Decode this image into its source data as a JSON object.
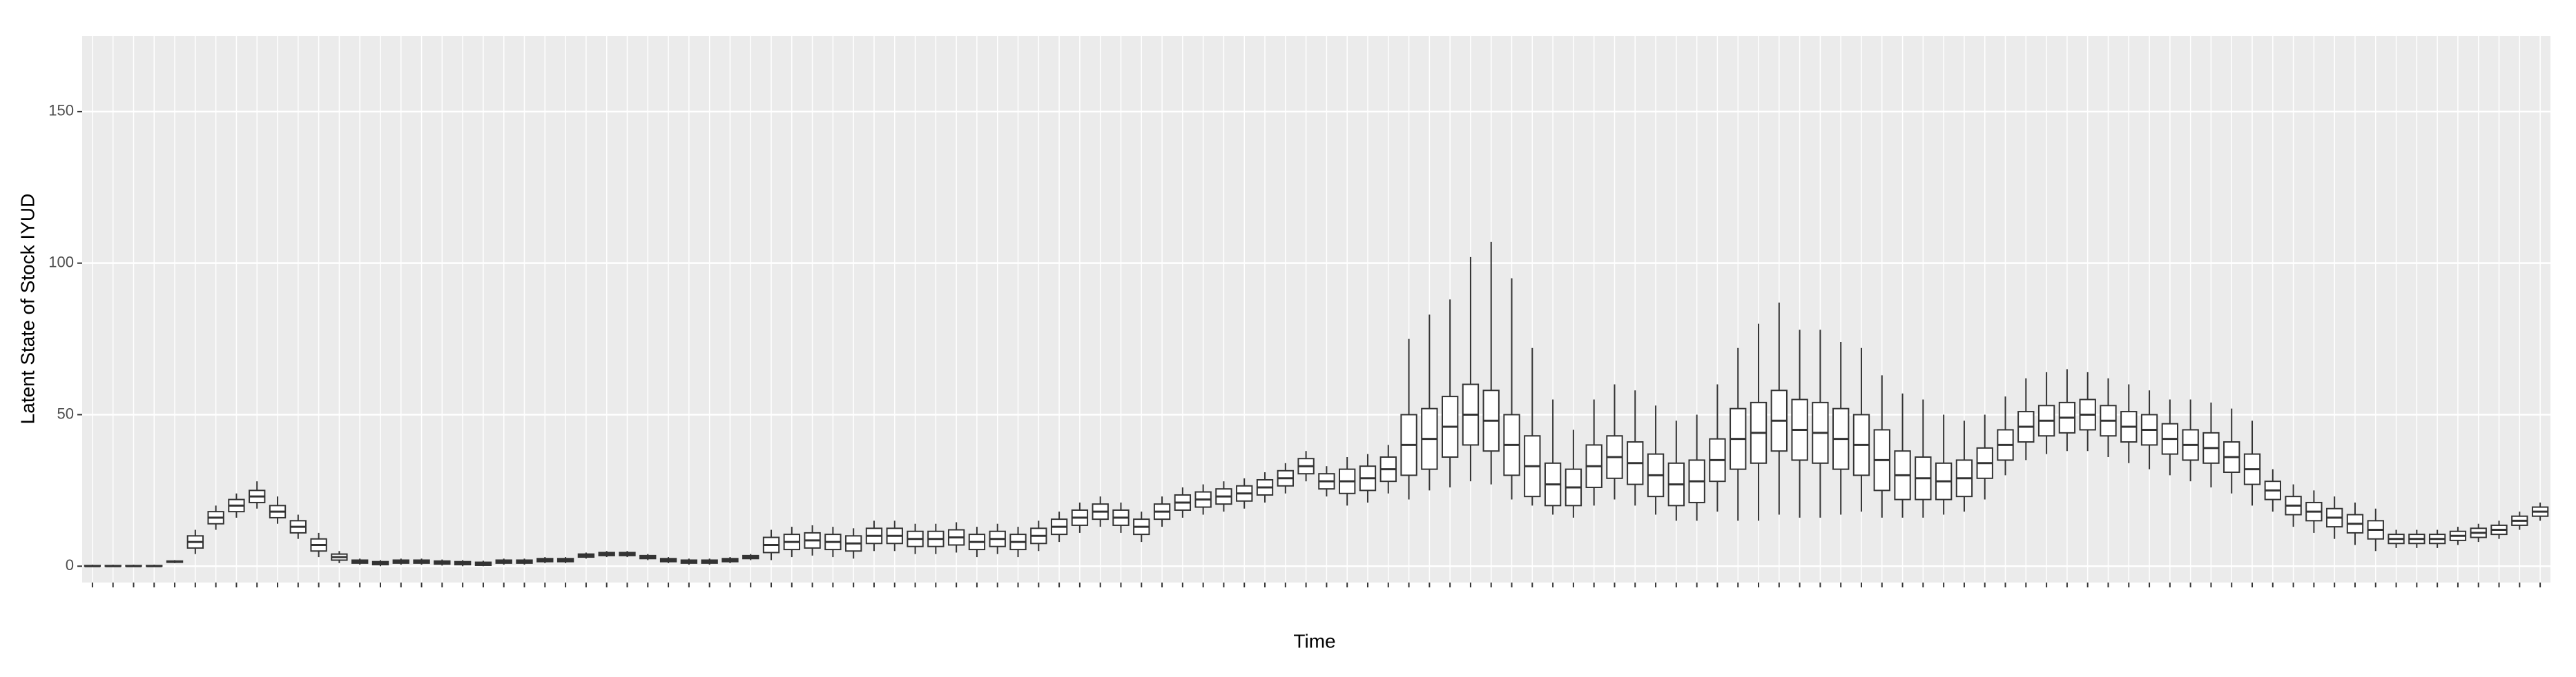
{
  "chart_data": {
    "type": "boxplot",
    "x_label": "Time",
    "y_label": "Latent State of Stock IYUD",
    "color": "#333333",
    "grid": true,
    "ylim": [
      -5.4,
      175
    ],
    "yticks": [
      0,
      50,
      100,
      150
    ],
    "categories": [
      null,
      null,
      null,
      null,
      null,
      null,
      null,
      null,
      null,
      null,
      null,
      null,
      null,
      null,
      null,
      null,
      null,
      null,
      null,
      null,
      null,
      null,
      null,
      null,
      null,
      null,
      null,
      null,
      null,
      null,
      null,
      null,
      null,
      null,
      null,
      null,
      null,
      null,
      null,
      null,
      null,
      null,
      null,
      null,
      null,
      null,
      null,
      null,
      null,
      null,
      null,
      null,
      null,
      null,
      null,
      null,
      null,
      null,
      null,
      null,
      null,
      null,
      null,
      null,
      null,
      null,
      null,
      null,
      null,
      null,
      null,
      null,
      null,
      null,
      null,
      null,
      null,
      null,
      null,
      null,
      null,
      null,
      null,
      null,
      null,
      null,
      null,
      null,
      null,
      null,
      null,
      null,
      null,
      null,
      null,
      null,
      null,
      null,
      null,
      null,
      null,
      null,
      null,
      null,
      null,
      null,
      null,
      null,
      null,
      null,
      null,
      null,
      null,
      null,
      null,
      null,
      null,
      null,
      null,
      null
    ],
    "min": [
      0,
      0,
      0,
      0,
      1,
      4,
      12,
      16,
      19,
      14,
      9,
      3,
      1,
      0.5,
      0,
      0.5,
      0.5,
      0.2,
      0,
      0,
      0.5,
      0.5,
      1,
      1,
      2.5,
      3,
      3,
      2,
      1,
      0.5,
      0.5,
      1,
      2,
      2,
      3,
      3.5,
      3,
      2.5,
      5,
      5,
      4,
      4,
      4.5,
      3,
      4,
      3,
      5,
      8,
      11,
      13,
      11,
      8,
      13,
      16,
      17,
      18,
      19,
      21,
      24,
      28,
      23,
      20,
      21,
      24,
      22,
      25,
      26,
      28,
      27,
      22,
      20,
      17,
      16,
      20,
      22,
      20,
      17,
      15,
      15,
      18,
      15,
      15,
      17,
      16,
      16,
      17,
      18,
      16,
      16,
      16,
      17,
      18,
      22,
      30,
      35,
      37,
      38,
      38,
      36,
      34,
      32,
      30,
      28,
      26,
      24,
      20,
      18,
      13,
      11,
      9,
      7,
      5,
      6,
      6,
      6,
      7,
      8,
      9,
      12,
      15
    ],
    "q1": [
      0,
      0,
      0,
      0,
      1.3,
      6,
      14,
      18,
      21,
      16,
      11,
      5,
      2,
      1,
      0.5,
      1,
      1,
      0.7,
      0.5,
      0.3,
      1,
      1,
      1.5,
      1.5,
      3,
      3.5,
      3.5,
      2.5,
      1.5,
      1,
      1,
      1.5,
      2.5,
      4.5,
      5.5,
      6,
      5.5,
      5,
      7.5,
      7.5,
      6.5,
      6.5,
      7,
      5.5,
      6.5,
      5.5,
      7.5,
      10.5,
      13.5,
      15.5,
      13.5,
      10.5,
      15.5,
      18.5,
      19.5,
      20.5,
      21.5,
      23.5,
      26.5,
      30.5,
      25.5,
      24,
      25,
      28,
      30,
      32,
      36,
      40,
      38,
      30,
      23,
      20,
      20,
      26,
      29,
      27,
      23,
      20,
      21,
      28,
      32,
      34,
      38,
      35,
      34,
      32,
      30,
      25,
      22,
      22,
      22,
      23,
      29,
      35,
      41,
      43,
      44,
      45,
      43,
      41,
      40,
      37,
      35,
      34,
      31,
      27,
      22,
      17,
      15,
      13,
      11,
      9,
      7.5,
      7.5,
      7.5,
      8.5,
      9.5,
      10.5,
      13.5,
      16.5
    ],
    "median": [
      0,
      0,
      0,
      0,
      1.5,
      8,
      16,
      20,
      23,
      18,
      13,
      7,
      3,
      1.5,
      1,
      1.5,
      1.5,
      1.2,
      1,
      0.8,
      1.5,
      1.5,
      2,
      2,
      3.5,
      4,
      4,
      3,
      2,
      1.5,
      1.5,
      2,
      3,
      7,
      8,
      8.5,
      8,
      7.5,
      10,
      10,
      9,
      9,
      9.5,
      8,
      9,
      8,
      10,
      13,
      16,
      18,
      16,
      13,
      18,
      21,
      22,
      23,
      24,
      26,
      29,
      33,
      28,
      28,
      29,
      32,
      40,
      42,
      46,
      50,
      48,
      40,
      33,
      27,
      26,
      33,
      36,
      34,
      30,
      27,
      28,
      35,
      42,
      44,
      48,
      45,
      44,
      42,
      40,
      35,
      30,
      29,
      28,
      29,
      34,
      40,
      46,
      48,
      49,
      50,
      48,
      46,
      45,
      42,
      40,
      39,
      36,
      32,
      25,
      20,
      18,
      16,
      14,
      12,
      9,
      9,
      9,
      10,
      11,
      12,
      15,
      18
    ],
    "q3": [
      0.2,
      0.2,
      0.2,
      0.2,
      1.7,
      10,
      18,
      22,
      25,
      20,
      15,
      9,
      4,
      2,
      1.5,
      2,
      2,
      1.7,
      1.5,
      1.3,
      2,
      2,
      2.5,
      2.5,
      4,
      4.5,
      4.5,
      3.5,
      2.5,
      2,
      2,
      2.5,
      3.5,
      9.5,
      10.5,
      11,
      10.5,
      10,
      12.5,
      12.5,
      11.5,
      11.5,
      12,
      10.5,
      11.5,
      10.5,
      12.5,
      15.5,
      18.5,
      20.5,
      18.5,
      15.5,
      20.5,
      23.5,
      24.5,
      25.5,
      26.5,
      28.5,
      31.5,
      35.5,
      30.5,
      32,
      33,
      36,
      50,
      52,
      56,
      60,
      58,
      50,
      43,
      34,
      32,
      40,
      43,
      41,
      37,
      34,
      35,
      42,
      52,
      54,
      58,
      55,
      54,
      52,
      50,
      45,
      38,
      36,
      34,
      35,
      39,
      45,
      51,
      53,
      54,
      55,
      53,
      51,
      50,
      47,
      45,
      44,
      41,
      37,
      28,
      23,
      21,
      19,
      17,
      15,
      10.5,
      10.5,
      10.5,
      11.5,
      12.5,
      13.5,
      16.5,
      19.5
    ],
    "max": [
      0.5,
      0.5,
      0.5,
      0.5,
      2,
      12,
      20,
      24,
      28,
      23,
      17,
      11,
      5,
      2.5,
      2,
      2.5,
      2.5,
      2.2,
      2,
      1.8,
      2.5,
      2.5,
      3,
      3,
      4.5,
      5,
      5,
      4,
      3,
      2.5,
      2.5,
      3,
      4,
      12,
      13,
      13.5,
      13,
      12.5,
      15,
      15,
      14,
      14,
      14.5,
      13,
      14,
      13,
      15,
      18,
      21,
      23,
      21,
      18,
      23,
      26,
      27,
      28,
      29,
      31,
      34,
      38,
      33,
      36,
      37,
      40,
      75,
      83,
      88,
      102,
      107,
      95,
      72,
      55,
      45,
      55,
      60,
      58,
      53,
      48,
      50,
      60,
      72,
      80,
      87,
      78,
      78,
      74,
      72,
      63,
      57,
      55,
      50,
      48,
      50,
      56,
      62,
      64,
      65,
      64,
      62,
      60,
      58,
      55,
      55,
      54,
      52,
      48,
      32,
      27,
      25,
      23,
      21,
      19,
      12,
      12,
      12,
      13,
      14,
      15,
      18,
      21
    ]
  }
}
